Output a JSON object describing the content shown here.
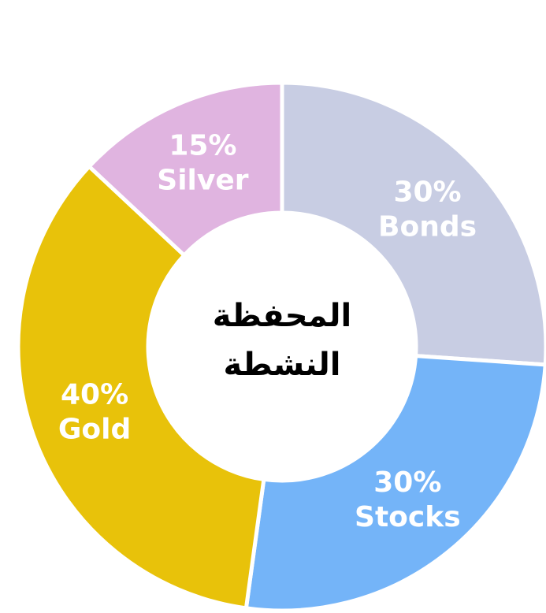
{
  "chart_data": {
    "type": "donut",
    "title": "المحفظة\nالنشطة",
    "categories": [
      "Bonds",
      "Stocks",
      "Gold",
      "Silver"
    ],
    "values": [
      30,
      30,
      40,
      15
    ],
    "value_labels": [
      "30%",
      "30%",
      "40%",
      "15%"
    ],
    "colors": [
      "#c8cde3",
      "#74b4f8",
      "#e8c20a",
      "#e0b4e0"
    ]
  }
}
